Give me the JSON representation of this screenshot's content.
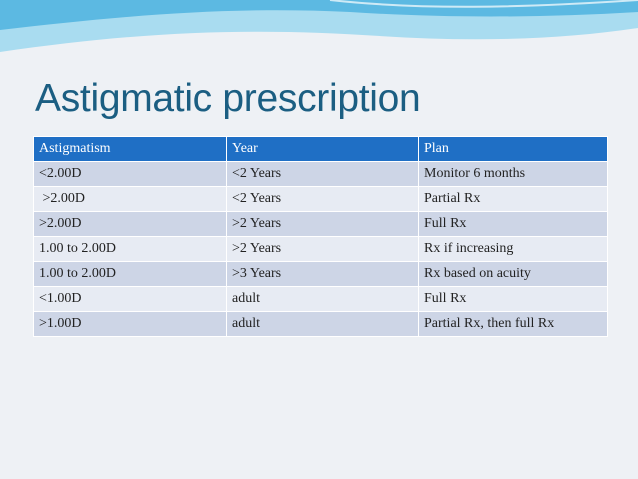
{
  "slide": {
    "title": "Astigmatic prescription"
  },
  "table": {
    "headers": [
      "Astigmatism",
      "Year",
      "Plan"
    ],
    "rows": [
      [
        "<2.00D",
        "<2 Years",
        "Monitor  6 months"
      ],
      [
        " >2.00D",
        "<2 Years",
        "Partial Rx"
      ],
      [
        ">2.00D",
        ">2 Years",
        "Full Rx"
      ],
      [
        "1.00 to 2.00D",
        ">2 Years",
        "Rx if increasing"
      ],
      [
        "1.00 to 2.00D",
        ">3 Years",
        "Rx based on acuity"
      ],
      [
        "<1.00D",
        "adult",
        "Full Rx"
      ],
      [
        ">1.00D",
        "adult",
        "Partial Rx, then full Rx"
      ]
    ]
  },
  "colors": {
    "title": "#1b5e82",
    "header_bg": "#1f6fc5",
    "row_dark": "#cdd5e6",
    "row_light": "#e7ebf3",
    "wave_light": "#9fd8ee",
    "wave_dark": "#4fb3de"
  }
}
